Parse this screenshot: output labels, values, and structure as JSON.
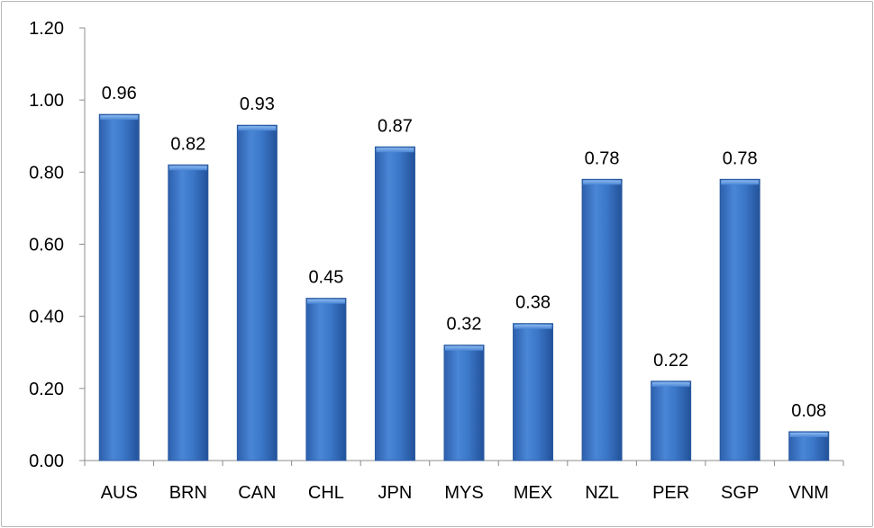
{
  "chart_data": {
    "type": "bar",
    "title": "",
    "xlabel": "",
    "ylabel": "",
    "categories": [
      "AUS",
      "BRN",
      "CAN",
      "CHL",
      "JPN",
      "MYS",
      "MEX",
      "NZL",
      "PER",
      "SGP",
      "VNM"
    ],
    "values": [
      0.96,
      0.82,
      0.93,
      0.45,
      0.87,
      0.32,
      0.38,
      0.78,
      0.22,
      0.78,
      0.08
    ],
    "value_labels": [
      "0.96",
      "0.82",
      "0.93",
      "0.45",
      "0.87",
      "0.32",
      "0.38",
      "0.78",
      "0.22",
      "0.78",
      "0.08"
    ],
    "ylim": [
      0,
      1.2
    ],
    "yticks": [
      "0.00",
      "0.20",
      "0.40",
      "0.60",
      "0.80",
      "1.00",
      "1.20"
    ],
    "ytick_values": [
      0,
      0.2,
      0.4,
      0.6,
      0.8,
      1.0,
      1.2
    ],
    "grid": false,
    "legend": "none",
    "bar_color": "#3a74c6",
    "bar_edge_color": "#2a5aa0"
  }
}
